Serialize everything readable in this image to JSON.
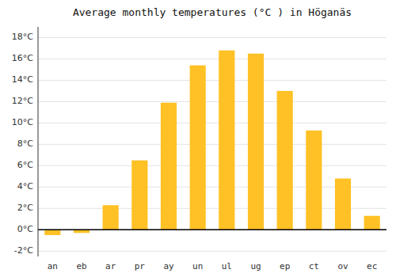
{
  "chart_data": {
    "type": "bar",
    "title": "Average monthly temperatures (°C ) in Höganäs",
    "categories": [
      "an",
      "eb",
      "ar",
      "pr",
      "ay",
      "un",
      "ul",
      "ug",
      "ep",
      "ct",
      "ov",
      "ec"
    ],
    "values": [
      -0.5,
      -0.3,
      2.3,
      6.5,
      11.9,
      15.4,
      16.8,
      16.5,
      13.0,
      9.3,
      4.8,
      1.3
    ],
    "color": "#FFC125",
    "ylim": [
      -2.5,
      19
    ],
    "yticks": [
      {
        "value": -2,
        "label": "-2°C"
      },
      {
        "value": 0,
        "label": "0°C"
      },
      {
        "value": 2,
        "label": "2°C"
      },
      {
        "value": 4,
        "label": "4°C"
      },
      {
        "value": 6,
        "label": "6°C"
      },
      {
        "value": 8,
        "label": "8°C"
      },
      {
        "value": 10,
        "label": "10°C"
      },
      {
        "value": 12,
        "label": "12°C"
      },
      {
        "value": 14,
        "label": "14°C"
      },
      {
        "value": 16,
        "label": "16°C"
      },
      {
        "value": 18,
        "label": "18°C"
      }
    ],
    "grid": true
  }
}
